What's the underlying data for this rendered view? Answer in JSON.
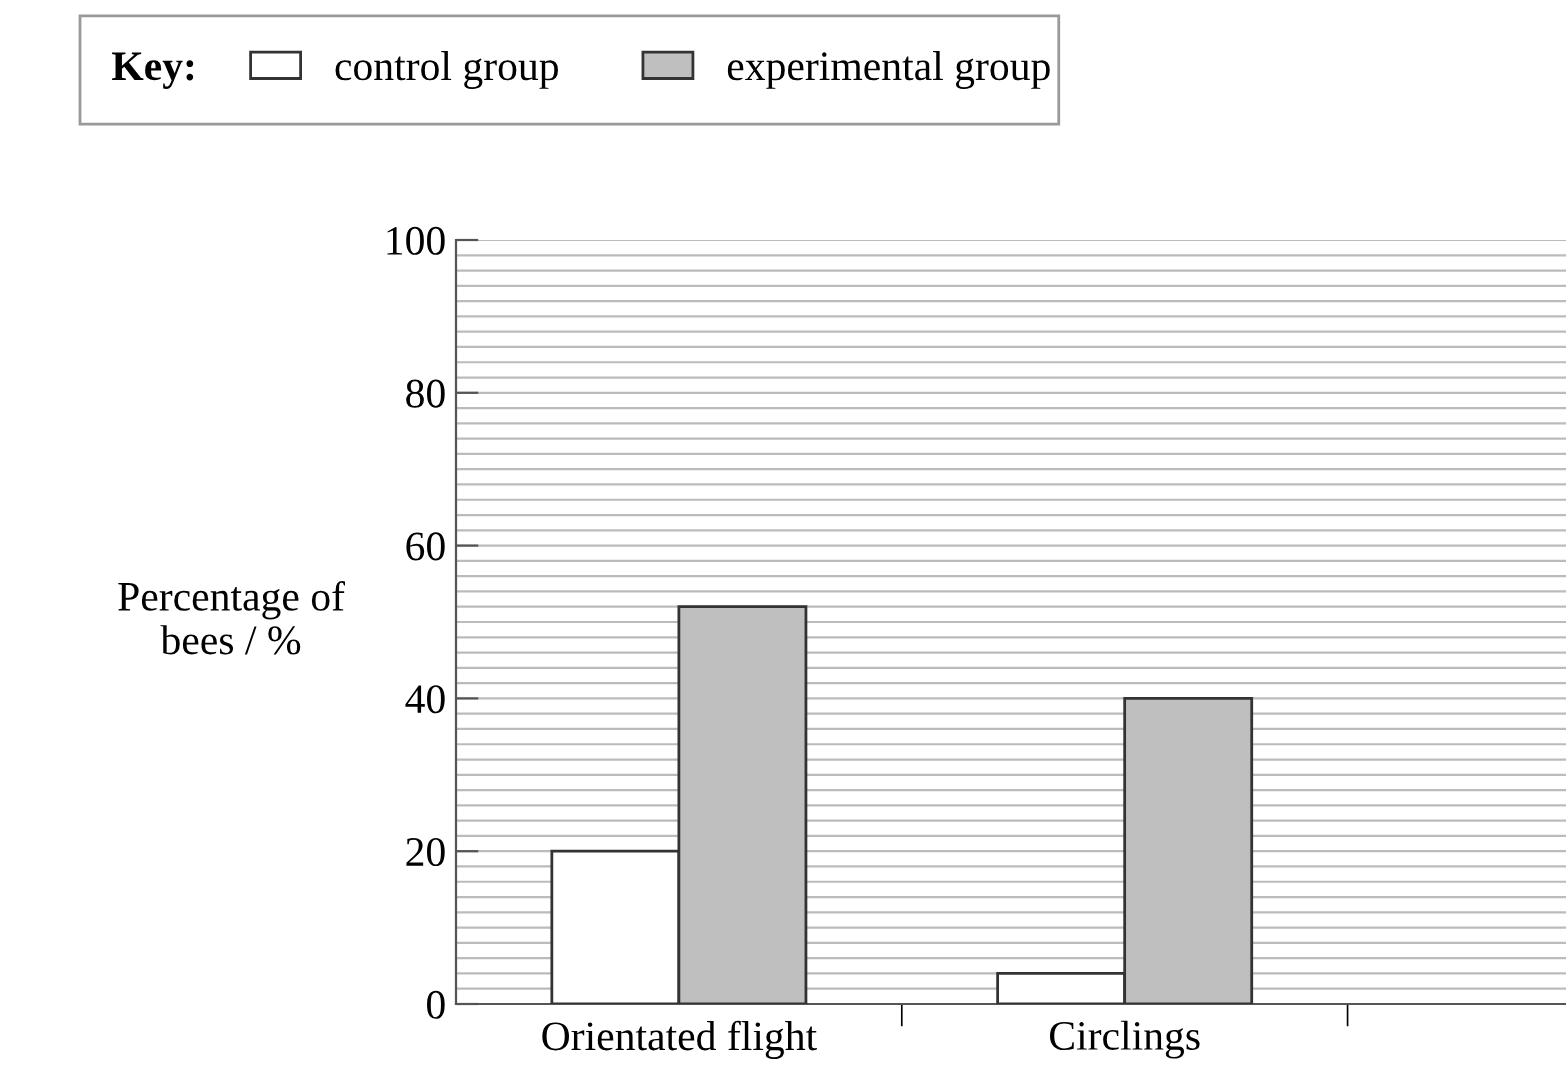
{
  "chart_data": {
    "type": "bar",
    "categories": [
      "Orientated flight",
      "Circlings"
    ],
    "series": [
      {
        "name": "control group",
        "color": "#ffffff",
        "values": [
          20,
          4
        ]
      },
      {
        "name": "experimental group",
        "color": "#bfbfbf",
        "values": [
          52,
          40
        ]
      }
    ],
    "legend_title": "Key:",
    "legend": "top left",
    "ylabel": "Percentage of\nbees / %",
    "ylim": [
      0,
      100
    ],
    "yticks": [
      0,
      {
        "value": 2,
        "label": null
      },
      {
        "value": 4,
        "label": null
      },
      {
        "value": 6,
        "label": null
      },
      {
        "value": 8,
        "label": null
      },
      {
        "value": 10,
        "label": null
      },
      {
        "value": 12,
        "label": null
      },
      {
        "value": 14,
        "label": null
      },
      {
        "value": 16,
        "label": null
      },
      {
        "value": 18,
        "label": null
      },
      20,
      {
        "value": 22,
        "label": null
      },
      {
        "value": 24,
        "label": null
      },
      {
        "value": 26,
        "label": null
      },
      {
        "value": 28,
        "label": null
      },
      {
        "value": 30,
        "label": null
      },
      {
        "value": 32,
        "label": null
      },
      {
        "value": 34,
        "label": null
      },
      {
        "value": 36,
        "label": null
      },
      {
        "value": 38,
        "label": null
      },
      40,
      {
        "value": 42,
        "label": null
      },
      {
        "value": 44,
        "label": null
      },
      {
        "value": 46,
        "label": null
      },
      {
        "value": 48,
        "label": null
      },
      {
        "value": 50,
        "label": null
      },
      {
        "value": 52,
        "label": null
      },
      {
        "value": 54,
        "label": null
      },
      {
        "value": 56,
        "label": null
      },
      {
        "value": 58,
        "label": null
      },
      60,
      {
        "value": 62,
        "label": null
      },
      {
        "value": 64,
        "label": null
      },
      {
        "value": 66,
        "label": null
      },
      {
        "value": 68,
        "label": null
      },
      {
        "value": 70,
        "label": null
      },
      {
        "value": 72,
        "label": null
      },
      {
        "value": 74,
        "label": null
      },
      {
        "value": 76,
        "label": null
      },
      {
        "value": 78,
        "label": null
      },
      80,
      {
        "value": 82,
        "label": null
      },
      {
        "value": 84,
        "label": null
      },
      {
        "value": 86,
        "label": null
      },
      {
        "value": 88,
        "label": null
      },
      {
        "value": 90,
        "label": null
      },
      {
        "value": 92,
        "label": null
      },
      {
        "value": 94,
        "label": null
      },
      {
        "value": 96,
        "label": null
      },
      {
        "value": 98,
        "label": null
      },
      100
    ],
    "grid": "y"
  }
}
